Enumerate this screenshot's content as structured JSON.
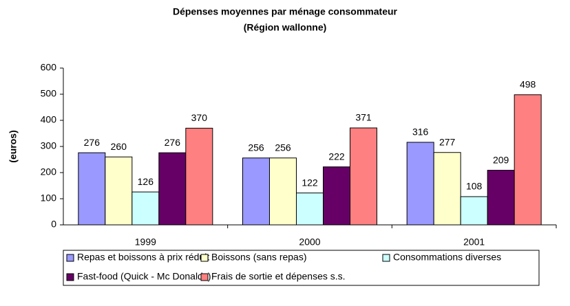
{
  "chart_data": {
    "type": "bar",
    "title": "Dépenses moyennes par ménage consommateur",
    "subtitle": "(Région wallonne)",
    "y_label": "(euros)",
    "categories": [
      "1999",
      "2000",
      "2001"
    ],
    "series": [
      {
        "name": "Repas et boissons à prix réduit",
        "color": "#9999ff",
        "values": [
          276,
          256,
          316
        ]
      },
      {
        "name": "Boissons (sans repas)",
        "color": "#ffffcc",
        "values": [
          260,
          256,
          277
        ]
      },
      {
        "name": "Consommations diverses",
        "color": "#ccffff",
        "values": [
          126,
          122,
          108
        ]
      },
      {
        "name": "Fast-food (Quick - Mc Donalds)",
        "color": "#660066",
        "values": [
          276,
          222,
          209
        ]
      },
      {
        "name": "Frais de sortie et dépenses s.s.",
        "color": "#ff8080",
        "values": [
          370,
          371,
          498
        ]
      }
    ],
    "ylim": [
      0,
      600
    ],
    "yticks": [
      0,
      100,
      200,
      300,
      400,
      500,
      600
    ],
    "grid": false,
    "legend": "bottom"
  }
}
